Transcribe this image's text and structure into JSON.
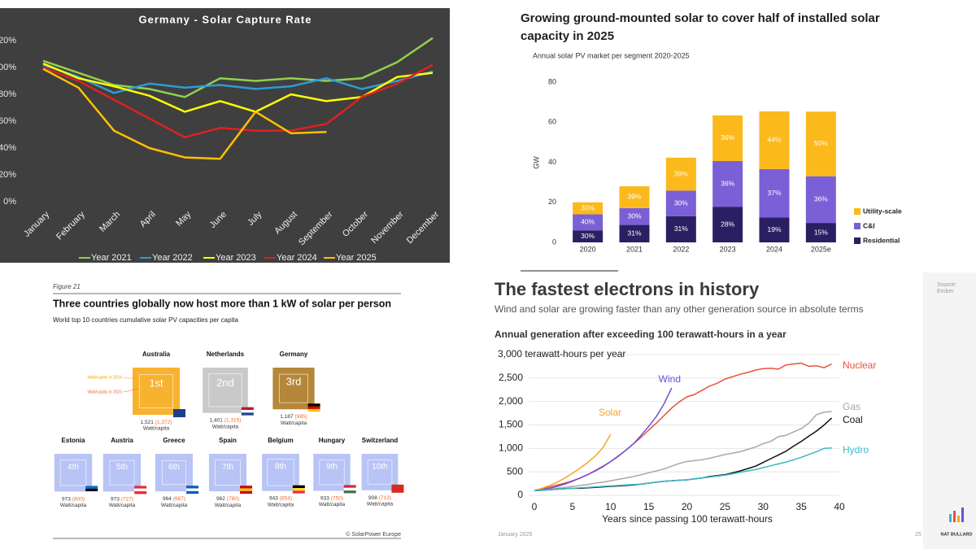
{
  "chart_data": [
    {
      "type": "line",
      "title": "Germany - Solar Capture Rate",
      "categories": [
        "January",
        "February",
        "March",
        "April",
        "May",
        "June",
        "July",
        "August",
        "September",
        "October",
        "November",
        "December"
      ],
      "ylim": [
        0,
        125
      ],
      "yticks": [
        {
          "value": 0,
          "label": "0%"
        },
        {
          "value": 20,
          "label": "20%"
        },
        {
          "value": 40,
          "label": "40%"
        },
        {
          "value": 60,
          "label": "60%"
        },
        {
          "value": 80,
          "label": "80%"
        },
        {
          "value": 100,
          "label": "100%"
        },
        {
          "value": 120,
          "label": "120%"
        }
      ],
      "legend": "bottom",
      "background": "#3f3f3f",
      "series": [
        {
          "name": "Year 2021",
          "color": "#92d050",
          "values": [
            105,
            96,
            87,
            84,
            78,
            92,
            90,
            92,
            90,
            92,
            104,
            122
          ]
        },
        {
          "name": "Year 2022",
          "color": "#2e9bd6",
          "values": [
            102,
            93,
            81,
            88,
            85,
            87,
            84,
            86,
            92,
            84,
            90,
            97
          ]
        },
        {
          "name": "Year 2023",
          "color": "#ffff00",
          "values": [
            103,
            92,
            86,
            79,
            67,
            75,
            67,
            80,
            75,
            78,
            93,
            96
          ]
        },
        {
          "name": "Year 2024",
          "color": "#e02020",
          "values": [
            100,
            90,
            76,
            62,
            48,
            55,
            53,
            53,
            58,
            78,
            88,
            102
          ]
        },
        {
          "name": "Year 2025",
          "color": "#ffc000",
          "values": [
            99,
            85,
            53,
            40,
            33,
            32,
            67,
            51,
            52,
            null,
            null,
            null
          ]
        }
      ]
    },
    {
      "type": "stacked_bar",
      "title": "Growing ground-mounted solar to cover half of installed solar capacity in 2025",
      "subtitle": "Annual solar PV market per segment 2020-2025",
      "y_label": "GW",
      "categories": [
        "2020",
        "2021",
        "2022",
        "2023",
        "2024",
        "2025e"
      ],
      "ylim": [
        0,
        80
      ],
      "yticks": [
        0,
        20,
        40,
        60,
        80
      ],
      "legend": "right",
      "series": [
        {
          "name": "Residential",
          "color": "#2b1f63",
          "values": [
            6,
            8.7,
            13.1,
            17.8,
            12.4,
            9.7
          ],
          "segment_labels": [
            "30%",
            "31%",
            "31%",
            "28%",
            "19%",
            "15%"
          ]
        },
        {
          "name": "C&I",
          "color": "#7a5fd6",
          "values": [
            8,
            8.4,
            12.7,
            22.8,
            24.2,
            23.3
          ],
          "segment_labels": [
            "40%",
            "30%",
            "30%",
            "36%",
            "37%",
            "36%"
          ]
        },
        {
          "name": "Utility-scale",
          "color": "#fbb91c",
          "values": [
            6,
            10.9,
            16.5,
            22.8,
            28.8,
            32.3
          ],
          "segment_labels": [
            "30%",
            "39%",
            "39%",
            "36%",
            "44%",
            "50%"
          ]
        }
      ]
    },
    {
      "type": "ranking",
      "figure_label": "Figure 21",
      "title": "Three countries globally now host more than 1 kW of solar per person",
      "subtitle": "World top 10 countries cumulative solar PV capacities per capita",
      "categories": [
        "Australia",
        "Netherlands",
        "Germany",
        "Estonia",
        "Austria",
        "Greece",
        "Spain",
        "Belgium",
        "Hungary",
        "Switzerland"
      ],
      "ranks": [
        "1st",
        "2nd",
        "3rd",
        "4th",
        "5th",
        "6th",
        "7th",
        "8th",
        "9th",
        "10th"
      ],
      "unit_label": "Watt/capita",
      "series": [
        {
          "name": "Watt/capita in 2024",
          "color": "#f4a500",
          "values": [
            1521,
            1401,
            1187,
            973,
            973,
            964,
            962,
            943,
            933,
            908
          ],
          "value_labels": [
            "1,521",
            "1,401",
            "1,187",
            "973",
            "973",
            "964",
            "962",
            "943",
            "933",
            "908"
          ]
        },
        {
          "name": "Watt/capita in 2023",
          "color": "#f06a2b",
          "values": [
            1372,
            1315,
            985,
            800,
            727,
            687,
            780,
            854,
            750,
            713
          ],
          "value_labels": [
            "(1,372)",
            "(1,315)",
            "(985)",
            "(800)",
            "(727)",
            "(687)",
            "(780)",
            "(854)",
            "(750)",
            "(713)"
          ]
        }
      ],
      "source": "© SolarPower Europe"
    },
    {
      "type": "line",
      "title": "The fastest electrons in history",
      "subtitle": "Wind and solar are growing faster than any other generation source in absolute terms",
      "chart_subtitle": "Annual generation after exceeding 100 terawatt-hours in a year",
      "x_label": "Years since passing 100 terawatt-hours",
      "x": [
        0,
        1,
        2,
        3,
        4,
        5,
        6,
        7,
        8,
        9,
        10,
        11,
        12,
        13,
        14,
        15,
        16,
        17,
        18,
        19,
        20,
        21,
        22,
        23,
        24,
        25,
        26,
        27,
        28,
        29,
        30,
        31,
        32,
        33,
        34,
        35,
        36,
        37,
        38,
        39
      ],
      "xlim": [
        0,
        40
      ],
      "xticks": [
        0,
        5,
        10,
        15,
        20,
        25,
        30,
        35,
        40
      ],
      "ylim": [
        0,
        3000
      ],
      "yticks": [
        0,
        500,
        {
          "value": 1000,
          "label": "1,000"
        },
        {
          "value": 1500,
          "label": "1,500"
        },
        {
          "value": 2000,
          "label": "2,000"
        },
        {
          "value": 2500,
          "label": "2,500"
        },
        {
          "value": 3000,
          "label": "3,000 terawatt-hours per year"
        }
      ],
      "grid": true,
      "series": [
        {
          "name": "Nuclear",
          "color": "#e5533d",
          "values": [
            100,
            140,
            180,
            220,
            260,
            310,
            370,
            440,
            530,
            620,
            720,
            840,
            960,
            1100,
            1240,
            1390,
            1540,
            1700,
            1860,
            1990,
            2100,
            2150,
            2240,
            2330,
            2390,
            2480,
            2530,
            2580,
            2620,
            2670,
            2700,
            2710,
            2690,
            2780,
            2800,
            2820,
            2750,
            2760,
            2720,
            2800
          ]
        },
        {
          "name": "Wind",
          "color": "#6b4fd8",
          "values": [
            100,
            120,
            150,
            190,
            240,
            300,
            370,
            440,
            520,
            610,
            720,
            830,
            960,
            1100,
            1280,
            1470,
            1680,
            1950,
            2290,
            null,
            null,
            null,
            null,
            null,
            null,
            null,
            null,
            null,
            null,
            null,
            null,
            null,
            null,
            null,
            null,
            null,
            null,
            null,
            null,
            null
          ]
        },
        {
          "name": "Solar",
          "color": "#f5a623",
          "values": [
            100,
            150,
            210,
            280,
            370,
            470,
            580,
            700,
            840,
            1020,
            1300,
            null,
            null,
            null,
            null,
            null,
            null,
            null,
            null,
            null,
            null,
            null,
            null,
            null,
            null,
            null,
            null,
            null,
            null,
            null,
            null,
            null,
            null,
            null,
            null,
            null,
            null,
            null,
            null,
            null
          ]
        },
        {
          "name": "Gas",
          "color": "#a8a8a8",
          "values": [
            100,
            110,
            130,
            150,
            170,
            190,
            210,
            230,
            260,
            280,
            310,
            340,
            370,
            400,
            440,
            480,
            520,
            560,
            620,
            680,
            720,
            740,
            760,
            790,
            830,
            870,
            900,
            930,
            980,
            1030,
            1100,
            1150,
            1250,
            1280,
            1350,
            1420,
            1540,
            1720,
            1770,
            1790
          ]
        },
        {
          "name": "Coal",
          "color": "#111111",
          "values": [
            100,
            110,
            120,
            130,
            140,
            150,
            150,
            160,
            170,
            180,
            190,
            200,
            210,
            220,
            240,
            260,
            280,
            300,
            310,
            320,
            330,
            350,
            370,
            400,
            420,
            440,
            480,
            520,
            570,
            620,
            700,
            780,
            860,
            940,
            1050,
            1150,
            1260,
            1370,
            1500,
            1650
          ]
        },
        {
          "name": "Hydro",
          "color": "#3bb7c9",
          "values": [
            100,
            110,
            120,
            130,
            140,
            150,
            160,
            170,
            180,
            190,
            200,
            210,
            220,
            230,
            240,
            260,
            280,
            300,
            310,
            320,
            330,
            350,
            370,
            390,
            410,
            430,
            460,
            490,
            520,
            550,
            590,
            630,
            670,
            710,
            760,
            810,
            870,
            930,
            1000,
            1010
          ]
        }
      ],
      "source_lines": [
        "Source:",
        "Ember"
      ],
      "date": "January 2025",
      "page": "25",
      "author": "NAT BULLARD"
    }
  ]
}
